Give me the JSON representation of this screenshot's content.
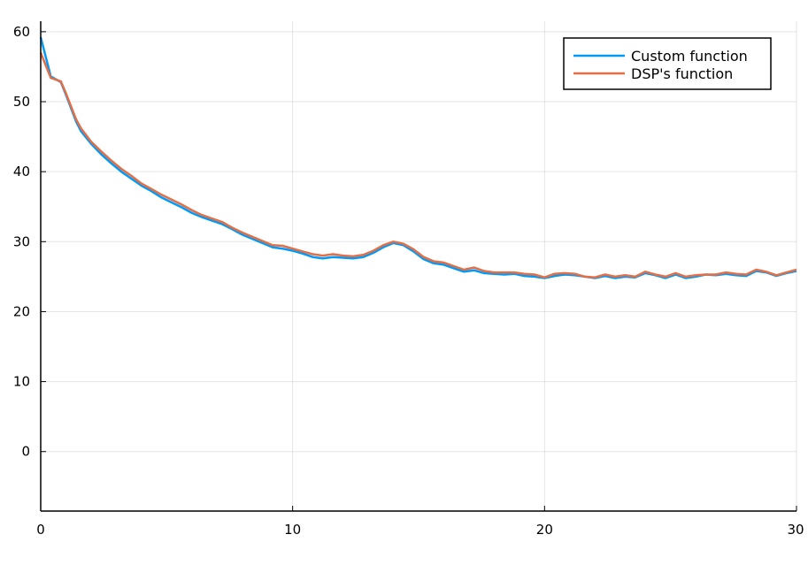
{
  "chart_data": {
    "type": "line",
    "title": "",
    "xlabel": "",
    "ylabel": "",
    "xlim": [
      0,
      30
    ],
    "ylim": [
      -8.5,
      61.5
    ],
    "xticks": [
      0,
      10,
      20,
      30
    ],
    "yticks": [
      0,
      10,
      20,
      30,
      40,
      50,
      60
    ],
    "xtick_labels": [
      "0",
      "10",
      "20",
      "30"
    ],
    "ytick_labels": [
      "0",
      "10",
      "20",
      "30",
      "40",
      "50",
      "60"
    ],
    "grid": true,
    "legend_position": "top-right",
    "series": [
      {
        "name": "Custom function",
        "color": "#009af9",
        "x": [
          0,
          0.4,
          0.8,
          1.0,
          1.4,
          1.6,
          2.0,
          2.4,
          2.8,
          3.2,
          3.6,
          4.0,
          4.4,
          4.8,
          5.2,
          5.6,
          6.0,
          6.4,
          6.8,
          7.2,
          7.6,
          8.0,
          8.4,
          8.8,
          9.2,
          9.6,
          10.0,
          10.4,
          10.8,
          11.2,
          11.6,
          12.0,
          12.4,
          12.8,
          13.2,
          13.6,
          14.0,
          14.4,
          14.8,
          15.2,
          15.6,
          16.0,
          16.4,
          16.8,
          17.2,
          17.6,
          18.0,
          18.4,
          18.8,
          19.2,
          19.6,
          20.0,
          20.4,
          20.8,
          21.2,
          21.6,
          22.0,
          22.4,
          22.8,
          23.2,
          23.6,
          24.0,
          24.4,
          24.8,
          25.2,
          25.6,
          26.0,
          26.4,
          26.8,
          27.2,
          27.6,
          28.0,
          28.4,
          28.8,
          29.2,
          29.6,
          30.0
        ],
        "y": [
          59.2,
          53.6,
          52.8,
          51.0,
          47.2,
          45.8,
          44.0,
          42.5,
          41.2,
          40.0,
          39.0,
          38.0,
          37.2,
          36.3,
          35.6,
          34.9,
          34.1,
          33.5,
          33.0,
          32.5,
          31.8,
          31.0,
          30.4,
          29.8,
          29.2,
          29.0,
          28.7,
          28.3,
          27.8,
          27.6,
          27.8,
          27.7,
          27.6,
          27.8,
          28.4,
          29.2,
          29.8,
          29.5,
          28.6,
          27.5,
          26.9,
          26.7,
          26.2,
          25.7,
          25.9,
          25.5,
          25.4,
          25.3,
          25.4,
          25.1,
          25.0,
          24.8,
          25.1,
          25.3,
          25.2,
          25.0,
          24.8,
          25.1,
          24.8,
          25.0,
          24.9,
          25.5,
          25.2,
          24.8,
          25.3,
          24.8,
          25.0,
          25.3,
          25.2,
          25.4,
          25.2,
          25.1,
          25.8,
          25.6,
          25.1,
          25.5,
          25.8
        ]
      },
      {
        "name": "DSP's function",
        "color": "#e26f46",
        "x": [
          0,
          0.4,
          0.8,
          1.0,
          1.4,
          1.6,
          2.0,
          2.4,
          2.8,
          3.2,
          3.6,
          4.0,
          4.4,
          4.8,
          5.2,
          5.6,
          6.0,
          6.4,
          6.8,
          7.2,
          7.6,
          8.0,
          8.4,
          8.8,
          9.2,
          9.6,
          10.0,
          10.4,
          10.8,
          11.2,
          11.6,
          12.0,
          12.4,
          12.8,
          13.2,
          13.6,
          14.0,
          14.4,
          14.8,
          15.2,
          15.6,
          16.0,
          16.4,
          16.8,
          17.2,
          17.6,
          18.0,
          18.4,
          18.8,
          19.2,
          19.6,
          20.0,
          20.4,
          20.8,
          21.2,
          21.6,
          22.0,
          22.4,
          22.8,
          23.2,
          23.6,
          24.0,
          24.4,
          24.8,
          25.2,
          25.6,
          26.0,
          26.4,
          26.8,
          27.2,
          27.6,
          28.0,
          28.4,
          28.8,
          29.2,
          29.6,
          30.0
        ],
        "y": [
          57.0,
          53.4,
          52.9,
          51.2,
          47.5,
          46.2,
          44.3,
          42.9,
          41.6,
          40.4,
          39.4,
          38.3,
          37.5,
          36.7,
          36.0,
          35.3,
          34.5,
          33.8,
          33.3,
          32.8,
          32.0,
          31.3,
          30.7,
          30.1,
          29.5,
          29.4,
          29.0,
          28.6,
          28.2,
          28.0,
          28.2,
          28.0,
          27.9,
          28.1,
          28.7,
          29.5,
          30.0,
          29.7,
          28.9,
          27.8,
          27.2,
          27.0,
          26.5,
          26.0,
          26.3,
          25.8,
          25.6,
          25.6,
          25.6,
          25.4,
          25.3,
          24.9,
          25.4,
          25.5,
          25.4,
          25.0,
          24.9,
          25.3,
          25.0,
          25.2,
          25.0,
          25.7,
          25.3,
          25.0,
          25.5,
          25.0,
          25.2,
          25.3,
          25.3,
          25.6,
          25.4,
          25.3,
          26.0,
          25.7,
          25.2,
          25.6,
          26.0
        ]
      }
    ]
  }
}
